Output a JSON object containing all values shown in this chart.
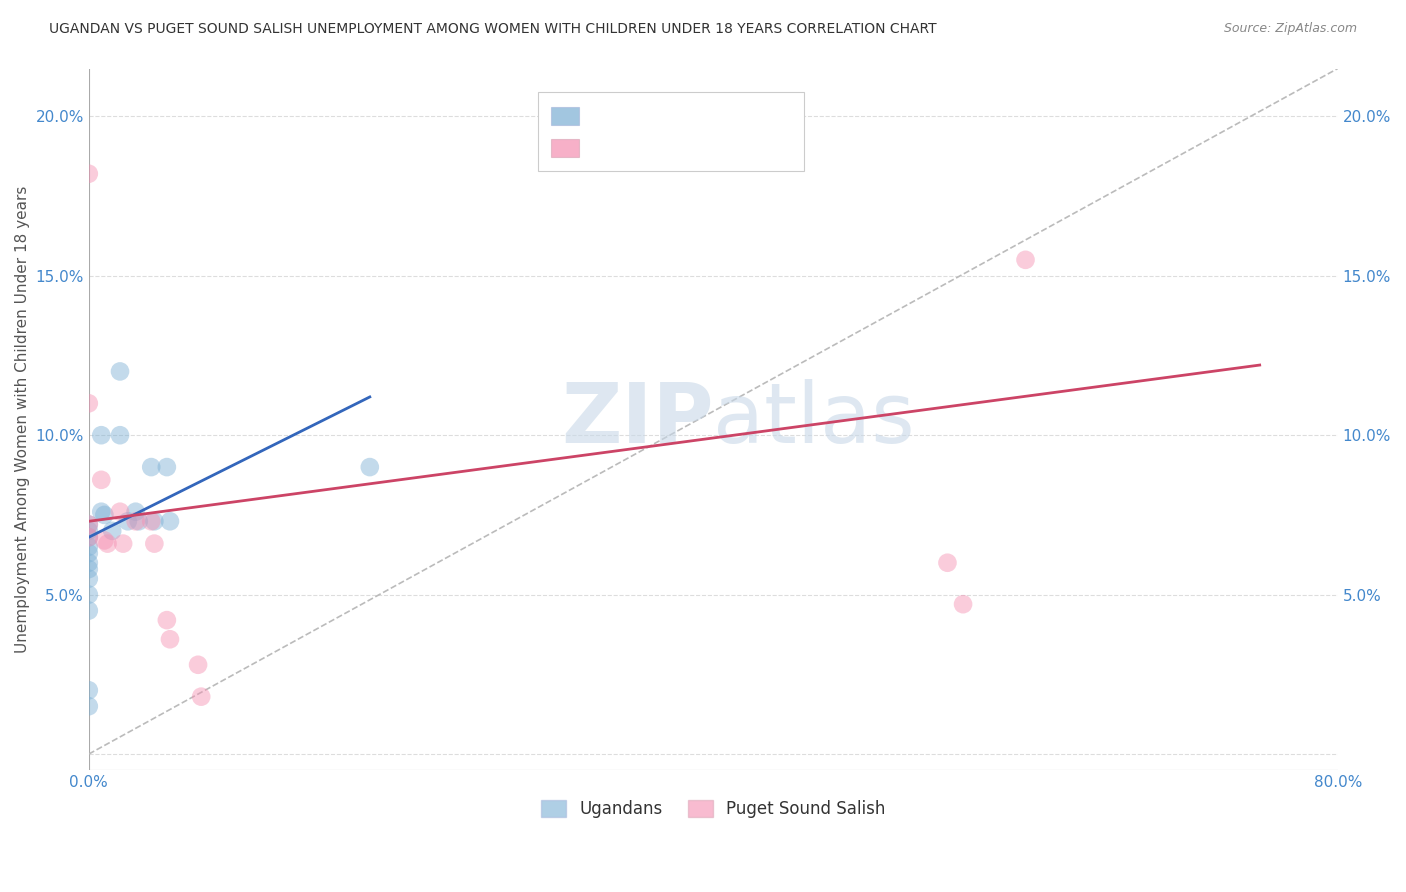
{
  "title": "UGANDAN VS PUGET SOUND SALISH UNEMPLOYMENT AMONG WOMEN WITH CHILDREN UNDER 18 YEARS CORRELATION CHART",
  "source": "Source: ZipAtlas.com",
  "ylabel": "Unemployment Among Women with Children Under 18 years",
  "xlim": [
    0.0,
    0.8
  ],
  "ylim": [
    -0.005,
    0.215
  ],
  "xticks": [
    0.0,
    0.1,
    0.2,
    0.3,
    0.4,
    0.5,
    0.6,
    0.7,
    0.8
  ],
  "xticklabels": [
    "0.0%",
    "",
    "",
    "",
    "",
    "",
    "",
    "",
    "80.0%"
  ],
  "yticks": [
    0.0,
    0.05,
    0.1,
    0.15,
    0.2
  ],
  "yticklabels_left": [
    "",
    "5.0%",
    "10.0%",
    "15.0%",
    "20.0%"
  ],
  "yticklabels_right": [
    "",
    "5.0%",
    "10.0%",
    "15.0%",
    "20.0%"
  ],
  "blue_color": "#7BAFD4",
  "pink_color": "#F48FB1",
  "line_blue": "#3366BB",
  "line_pink": "#CC4466",
  "diagonal_color": "#BBBBBB",
  "ugandan_x": [
    0.0,
    0.0,
    0.0,
    0.0,
    0.0,
    0.0,
    0.0,
    0.0,
    0.0,
    0.0,
    0.0,
    0.0,
    0.008,
    0.008,
    0.01,
    0.015,
    0.02,
    0.02,
    0.025,
    0.03,
    0.032,
    0.04,
    0.042,
    0.05,
    0.052,
    0.18
  ],
  "ugandan_y": [
    0.072,
    0.07,
    0.068,
    0.065,
    0.063,
    0.06,
    0.058,
    0.055,
    0.05,
    0.045,
    0.02,
    0.015,
    0.1,
    0.076,
    0.075,
    0.07,
    0.12,
    0.1,
    0.073,
    0.076,
    0.073,
    0.09,
    0.073,
    0.09,
    0.073,
    0.09
  ],
  "salish_x": [
    0.0,
    0.0,
    0.0,
    0.0,
    0.008,
    0.01,
    0.012,
    0.02,
    0.022,
    0.03,
    0.04,
    0.042,
    0.05,
    0.052,
    0.07,
    0.072,
    0.55,
    0.56,
    0.6
  ],
  "salish_y": [
    0.182,
    0.11,
    0.072,
    0.068,
    0.086,
    0.067,
    0.066,
    0.076,
    0.066,
    0.073,
    0.073,
    0.066,
    0.042,
    0.036,
    0.028,
    0.018,
    0.06,
    0.047,
    0.155
  ],
  "blue_line_x": [
    0.0,
    0.18
  ],
  "blue_line_y": [
    0.068,
    0.112
  ],
  "pink_line_x": [
    0.0,
    0.75
  ],
  "pink_line_y": [
    0.073,
    0.122
  ],
  "diag_line_x": [
    0.0,
    0.8
  ],
  "diag_line_y": [
    0.0,
    0.215
  ],
  "bg_color": "#FFFFFF",
  "grid_color": "#DDDDDD",
  "title_color": "#333333",
  "axis_label_color": "#555555",
  "tick_color": "#4488CC",
  "legend_box_color": "#FFFFFF",
  "legend_border_color": "#CCCCCC",
  "watermark_color": "#C8D8E8"
}
